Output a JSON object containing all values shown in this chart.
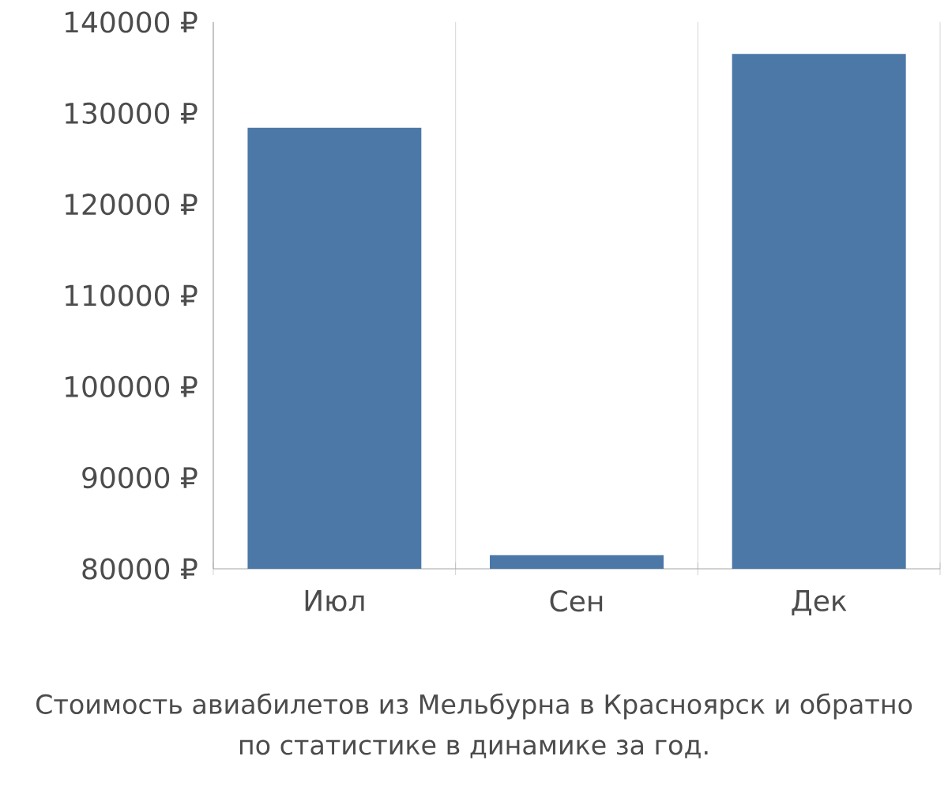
{
  "chart_data": {
    "type": "bar",
    "categories": [
      "Июл",
      "Сен",
      "Дек"
    ],
    "values": [
      128400,
      81500,
      136500
    ],
    "color": "#4c78a8",
    "ylim": [
      80000,
      140000
    ],
    "yticks": [
      {
        "value": 80000,
        "label": "80000 ₽"
      },
      {
        "value": 90000,
        "label": "90000 ₽"
      },
      {
        "value": 100000,
        "label": "100000 ₽"
      },
      {
        "value": 110000,
        "label": "110000 ₽"
      },
      {
        "value": 120000,
        "label": "120000 ₽"
      },
      {
        "value": 130000,
        "label": "130000 ₽"
      },
      {
        "value": 140000,
        "label": "140000 ₽"
      }
    ],
    "grid": "x",
    "annotations": [
      "Стоимость авиабилетов из Мельбурна в Красноярск и обратно",
      "по статистике в динамике за год."
    ]
  }
}
